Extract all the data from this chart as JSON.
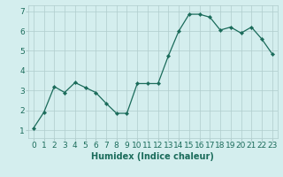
{
  "x": [
    0,
    1,
    2,
    3,
    4,
    5,
    6,
    7,
    8,
    9,
    10,
    11,
    12,
    13,
    14,
    15,
    16,
    17,
    18,
    19,
    20,
    21,
    22,
    23
  ],
  "y": [
    1.1,
    1.9,
    3.2,
    2.9,
    3.4,
    3.15,
    2.9,
    2.35,
    1.85,
    1.85,
    3.35,
    3.35,
    3.35,
    4.75,
    6.0,
    6.85,
    6.85,
    6.7,
    6.05,
    6.2,
    5.9,
    6.2,
    5.6,
    4.85
  ],
  "line_color": "#1a6b5a",
  "marker": "D",
  "marker_size": 2.2,
  "bg_color": "#d4eeee",
  "grid_color": "#b0cccc",
  "xlabel": "Humidex (Indice chaleur)",
  "ylim": [
    0.6,
    7.3
  ],
  "xlim": [
    -0.5,
    23.5
  ],
  "yticks": [
    1,
    2,
    3,
    4,
    5,
    6,
    7
  ],
  "xticks": [
    0,
    1,
    2,
    3,
    4,
    5,
    6,
    7,
    8,
    9,
    10,
    11,
    12,
    13,
    14,
    15,
    16,
    17,
    18,
    19,
    20,
    21,
    22,
    23
  ],
  "xlabel_fontsize": 7,
  "tick_fontsize": 6.5,
  "linewidth": 0.9
}
